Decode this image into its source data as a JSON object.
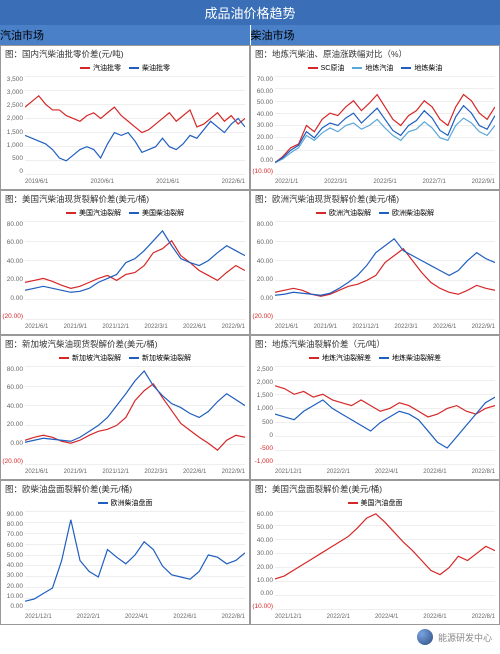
{
  "header": {
    "main_title": "成品油价格趋势",
    "left_tab": "汽油市场",
    "right_tab": "柴油市场",
    "bg_main": "#3a6fb7",
    "bg_sub": "#4a80c8"
  },
  "colors": {
    "red": "#d62728",
    "blue": "#1f5fbf",
    "lightblue": "#5aa7d8",
    "grid": "#eeeeee",
    "axis": "#666666"
  },
  "panels": [
    {
      "id": "p1",
      "title": "图：国内汽柴油批零价差(元/吨)",
      "ymin": 0,
      "ymax": 3500,
      "ystep": 500,
      "xlabels": [
        "2019/6/1",
        "2020/6/1",
        "2021/6/1",
        "2022/6/1"
      ],
      "series": [
        {
          "name": "汽油批零",
          "color": "#d62728",
          "data": [
            2400,
            2600,
            2800,
            2500,
            2300,
            2300,
            2100,
            2000,
            1900,
            2100,
            2200,
            2000,
            2200,
            2400,
            2100,
            1900,
            1700,
            1500,
            1600,
            1800,
            2000,
            2200,
            1900,
            2100,
            2300,
            1700,
            1800,
            2000,
            2200,
            1900,
            2100,
            1800,
            2000
          ]
        },
        {
          "name": "柴油批零",
          "color": "#1f5fbf",
          "data": [
            1400,
            1300,
            1200,
            1100,
            900,
            600,
            500,
            700,
            900,
            1000,
            900,
            600,
            1100,
            1500,
            1400,
            1500,
            1200,
            800,
            900,
            1000,
            1300,
            1000,
            900,
            1100,
            1400,
            1300,
            1600,
            1900,
            1700,
            1500,
            1800,
            2000,
            1700
          ]
        }
      ]
    },
    {
      "id": "p2",
      "title": "图：地炼汽柴油、原油涨跌幅对比（%）",
      "ymin": -10,
      "ymax": 70,
      "ystep": 10,
      "xlabels": [
        "2022/1/1",
        "2022/3/1",
        "2022/5/1",
        "2022/7/1",
        "2022/9/1"
      ],
      "series": [
        {
          "name": "SC原油",
          "color": "#d62728",
          "data": [
            0,
            5,
            12,
            15,
            30,
            25,
            35,
            40,
            38,
            45,
            50,
            42,
            48,
            55,
            45,
            35,
            30,
            38,
            42,
            50,
            45,
            35,
            30,
            45,
            55,
            50,
            40,
            35,
            45
          ]
        },
        {
          "name": "地炼汽油",
          "color": "#5aa7d8",
          "data": [
            0,
            3,
            8,
            12,
            22,
            18,
            24,
            28,
            25,
            30,
            32,
            27,
            30,
            35,
            28,
            22,
            18,
            25,
            27,
            33,
            28,
            20,
            18,
            30,
            36,
            32,
            25,
            22,
            30
          ]
        },
        {
          "name": "地炼柴油",
          "color": "#1f5fbf",
          "data": [
            0,
            4,
            10,
            14,
            25,
            20,
            28,
            32,
            30,
            36,
            40,
            32,
            38,
            44,
            35,
            26,
            22,
            30,
            34,
            42,
            36,
            26,
            22,
            37,
            46,
            40,
            30,
            27,
            38
          ]
        }
      ]
    },
    {
      "id": "p3",
      "title": "图：美国汽柴油现货裂解价差(美元/桶)",
      "ymin": -20,
      "ymax": 80,
      "ystep": 20,
      "neg_bottom": true,
      "xlabels": [
        "2021/6/1",
        "2021/9/1",
        "2021/12/1",
        "2022/3/1",
        "2022/6/1",
        "2022/9/1"
      ],
      "series": [
        {
          "name": "美国汽油裂解",
          "color": "#d62728",
          "data": [
            18,
            20,
            22,
            19,
            15,
            12,
            14,
            18,
            22,
            25,
            20,
            26,
            28,
            35,
            48,
            52,
            60,
            45,
            38,
            30,
            25,
            20,
            28,
            35,
            30
          ]
        },
        {
          "name": "美国柴油裂解",
          "color": "#1f5fbf",
          "data": [
            10,
            12,
            14,
            12,
            10,
            8,
            9,
            12,
            18,
            22,
            26,
            38,
            42,
            50,
            60,
            70,
            55,
            42,
            38,
            35,
            40,
            48,
            55,
            50,
            45
          ]
        }
      ]
    },
    {
      "id": "p4",
      "title": "图：欧洲汽柴油现货裂解价差(美元/桶)",
      "ymin": -20,
      "ymax": 80,
      "ystep": 20,
      "neg_bottom": true,
      "xlabels": [
        "2021/6/1",
        "2021/9/1",
        "2021/12/1",
        "2022/3/1",
        "2022/6/1",
        "2022/9/1"
      ],
      "series": [
        {
          "name": "欧洲汽油裂解",
          "color": "#d62728",
          "data": [
            8,
            10,
            12,
            10,
            6,
            4,
            6,
            10,
            14,
            16,
            20,
            25,
            38,
            45,
            52,
            40,
            28,
            18,
            12,
            8,
            6,
            10,
            15,
            12,
            10
          ]
        },
        {
          "name": "欧洲柴油裂解",
          "color": "#1f5fbf",
          "data": [
            5,
            6,
            8,
            7,
            6,
            5,
            7,
            12,
            18,
            25,
            35,
            48,
            55,
            62,
            50,
            45,
            40,
            35,
            30,
            25,
            30,
            40,
            48,
            42,
            38
          ]
        }
      ]
    },
    {
      "id": "p5",
      "title": "图：新加坡汽柴油现货裂解价差(美元/桶)",
      "ymin": -20,
      "ymax": 80,
      "ystep": 20,
      "neg_bottom": true,
      "xlabels": [
        "2021/6/1",
        "2021/9/1",
        "2021/12/1",
        "2022/3/1",
        "2022/6/1",
        "2022/9/1"
      ],
      "series": [
        {
          "name": "新加坡汽油裂解",
          "color": "#d62728",
          "data": [
            5,
            8,
            10,
            8,
            4,
            2,
            5,
            10,
            14,
            16,
            20,
            28,
            45,
            55,
            62,
            48,
            35,
            22,
            15,
            8,
            2,
            -5,
            5,
            10,
            8
          ]
        },
        {
          "name": "新加坡柴油裂解",
          "color": "#1f5fbf",
          "data": [
            3,
            5,
            7,
            6,
            5,
            4,
            8,
            14,
            20,
            28,
            40,
            52,
            65,
            75,
            60,
            50,
            42,
            38,
            32,
            28,
            34,
            44,
            52,
            46,
            40
          ]
        }
      ]
    },
    {
      "id": "p6",
      "title": "图：地炼汽柴油裂解价差（元/吨）",
      "ymin": -1000,
      "ymax": 2500,
      "ystep": 500,
      "xlabels": [
        "2021/12/1",
        "2022/2/1",
        "2022/4/1",
        "2022/6/1",
        "2022/8/1"
      ],
      "series": [
        {
          "name": "地炼汽油裂解差",
          "color": "#d62728",
          "data": [
            1800,
            1700,
            1500,
            1600,
            1400,
            1500,
            1300,
            1200,
            1100,
            1300,
            1100,
            900,
            1000,
            1200,
            1100,
            900,
            700,
            800,
            1000,
            1100,
            900,
            800,
            1000,
            1100
          ]
        },
        {
          "name": "地炼柴油裂解差",
          "color": "#1f5fbf",
          "data": [
            800,
            700,
            600,
            900,
            1100,
            1300,
            1000,
            800,
            600,
            400,
            200,
            500,
            700,
            900,
            800,
            600,
            200,
            -200,
            -400,
            0,
            400,
            800,
            1200,
            1400
          ]
        }
      ]
    },
    {
      "id": "p7",
      "title": "图：欧柴油盘面裂解价差(美元/桶)",
      "ymin": 0,
      "ymax": 90,
      "ystep": 10,
      "xlabels": [
        "2021/12/1",
        "2022/2/1",
        "2022/4/1",
        "2022/6/1",
        "2022/8/1"
      ],
      "series": [
        {
          "name": "欧洲柴油盘面",
          "color": "#1f5fbf",
          "data": [
            8,
            10,
            15,
            20,
            45,
            82,
            45,
            35,
            30,
            55,
            48,
            42,
            50,
            62,
            55,
            40,
            32,
            30,
            28,
            35,
            50,
            48,
            42,
            45,
            52
          ]
        }
      ]
    },
    {
      "id": "p8",
      "title": "图：美国汽盘面裂解价差(美元/桶)",
      "ymin": -10,
      "ymax": 60,
      "ystep": 10,
      "neg_bottom": true,
      "xlabels": [
        "2021/12/1",
        "2022/2/1",
        "2022/4/1",
        "2022/6/1",
        "2022/8/1"
      ],
      "series": [
        {
          "name": "美国汽油盘面",
          "color": "#d62728",
          "data": [
            12,
            14,
            18,
            22,
            26,
            30,
            34,
            38,
            42,
            48,
            55,
            58,
            52,
            45,
            38,
            32,
            25,
            18,
            15,
            20,
            28,
            25,
            30,
            35,
            32
          ]
        }
      ]
    }
  ],
  "footer": {
    "source_label": "能源研发中心",
    "icon_name": "wechat-icon"
  }
}
